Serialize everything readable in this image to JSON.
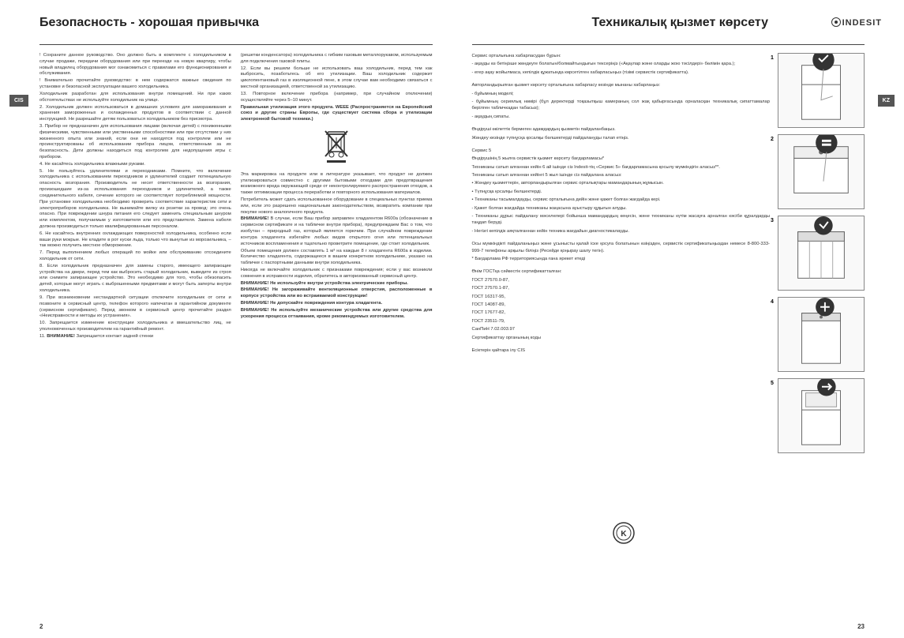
{
  "left": {
    "heading": "Безопасность - хорошая привычка",
    "tab": "CIS",
    "pageNum": "2",
    "col1": [
      {
        "t": "! Сохраните данное руководство. Оно должно быть в комплекте с холодильником в случае продажи, передачи оборудования или при переезде на новую квартиру, чтобы новый владелец оборудования мог ознакомиться с правилами его функционирования и обслуживания."
      },
      {
        "t": "! Внимательно прочитайте руководство: в нем содержатся важные сведения по установке и безопасной эксплуатации вашего холодильника."
      },
      {
        "t": "Холодильник разработан для использования внутри помещений. Ни при каких обстоятельствах не используйте холодильник на улице."
      },
      {
        "t": "2. Холодильник должен использоваться в домашних условиях для замораживания и хранения замороженных и охлажденных продуктов в соответствии с данной инструкцией. Не разрешайте детям пользоваться холодильником без присмотра."
      },
      {
        "t": "3. Прибор не предназначен для использования лицами (включая детей) с пониженными физическими, чувственными или умственными способностями или при отсутствии у них жизненного опыта или знаний, если они не находятся под контролем или не проинструктированы об использовании прибора лицом, ответственным за их безопасность. Дети должны находиться под контролем для недопущения игры с прибором."
      },
      {
        "t": "4. Не касайтесь холодильника влажными руками."
      },
      {
        "t": "5. Не пользуйтесь удлинителями и переходниками. Помните, что включение холодильника с использованием переходников и удлинителей создает потенциальную опасность возгорания. Производитель не несет ответственности за возгорания, произошедшие из-за использования переходников и удлинителей, а также соединительного кабеля, сечение которого не соответствует потребляемой мощности. При установке холодильника необходимо проверить соответствие характеристик сети и электроприборов холодильника. Не вынимайте вилку из розетки за провод: это очень опасно. При повреждении шнура питания его следует заменить специальным шнуром или комплектом, получаемым у изготовителя или его представителя. Замена кабеля должна производиться только квалифицированным персоналом."
      },
      {
        "t": "6. Не касайтесь внутренних охлаждающих поверхностей холодильника, особенно если ваши руки мокрые. Не кладите в рот куски льда, только что вынутые из морозильника, – так можно получить местное обморожение."
      },
      {
        "t": "7. Перед выполнением любых операций по мойке или обслуживанию отсоедините холодильник от сети."
      },
      {
        "t": "8. Если холодильник предназначен для замены старого, имеющего запирающие устройства на двери, перед тем как выбросить старый холодильник, выведите из строя или снимите запирающее устройство. Это необходимо для того, чтобы обезопасить детей, которые могут играть с выброшенными предметами и могут быть заперты внутри холодильника."
      },
      {
        "t": "9. При возникновении нестандартной ситуации отключите холодильник от сети и позвоните в сервисный центр, телефон которого напечатан в гарантийном документе (сервисном сертификате). Перед звонком в сервисный центр прочитайте раздел «Неисправности и методы их устранения»."
      },
      {
        "t": "10. Запрещается изменение конструкции холодильника и вмешательство лиц, не уполномоченных производителем на гарантийный ремонт."
      },
      {
        "t": "11. ",
        "b": "ВНИМАНИЕ!",
        "a": " Запрещается контакт задней стенки"
      }
    ],
    "col2": [
      {
        "t": "(решетки конденсатора) холодильника с гибким газовым металлорукавом, используемым для подключения газовой плиты."
      },
      {
        "t": "12. Если вы решили больше не использовать ваш холодильник, перед тем как выбросить, позаботьтесь об его утилизации. Ваш холодильник содержит циклопентановый газ в изоляционной пене, в этом случае вам необходимо связаться с местной организацией, ответственной за утилизацию."
      },
      {
        "t": "13. Повторное включение прибора (например, при случайном отключении) осуществляйте через 5–10 минут."
      },
      {
        "b": "Правильная утилизация этого продукта. WEEE (Распространяется на Европейский союз и другие страны Европы, где существует система сбора и утилизации электронной бытовой техники.)"
      },
      {
        "icon": "weee"
      },
      {
        "t": "Эта маркировка на продукте или в литературе указывает, что продукт не должен утилизироваться совместно с другими бытовыми отходами для предотвращения возможного вреда окружающей среде от неконтролируемого распространения отходов, а также оптимизации процесса переработки и повторного использования материалов."
      },
      {
        "t": "Потребитель может сдать использованное оборудование в специальных пунктах приема или, если это разрешено национальным законодательством, возвратить компании при покупке нового аналогичного продукта."
      },
      {
        "b": "ВНИМАНИЕ!",
        "a": " В случае, если Ваш прибор заправлен хладагентом R600a (обозначение в сервисном сертификате и на табличке внутри прибора), предупреждаем Вас о том, что изобутан – природный газ, который является горючим. При случайном повреждении контура хладагента избегайте любых видов открытого огня или потенциальных источников воспламенения и тщательно проветрите помещение, где стоит холодильник."
      },
      {
        "t": "Объем помещения должен составлять 1 м³ на каждые 8 г хладагента R600a в изделии. Количество хладагента, содержащееся в вашем конкретном холодильнике, указано на табличке с паспортными данными внутри холодильника."
      },
      {
        "t": "Никогда не включайте холодильник с признаками повреждения; если у вас возникли сомнения в исправности изделия, обратитесь в авторизованный сервисный центр."
      },
      {
        "b": "ВНИМАНИЕ! Не используйте внутри устройства электрические приборы."
      },
      {
        "b": "ВНИМАНИЕ! Не загораживайте вентиляционные отверстия, расположенные в корпусе устройства или во встраиваемой конструкции!"
      },
      {
        "b": "ВНИМАНИЕ! Не допускайте повреждения контура хладагента."
      },
      {
        "b": "ВНИМАНИЕ! Не используйте механические устройства или другие средства для ускорения процесса оттаивания, кроме рекомендуемых изготовителем."
      }
    ]
  },
  "right": {
    "heading": "Техникалық қызмет көрсету",
    "tab": "KZ",
    "pageNum": "23",
    "logo": "INDESIT",
    "text": [
      {
        "b": "Сервис",
        "a": " орталығына хабарласудан бұрын:"
      },
      {
        "t": "- ақауды өз бетіңізше жөндеуге болатын/болмайтындығын тексеріңіз («Ақаулар және оларды жою тәсілдері» бөлімін қара.);"
      },
      {
        "t": "- егер ақау жойылмаса, кепілдік құжатында көрсетілген хабарласыңыз (тізімі сервистік сертификатта)."
      },
      {
        "br": true
      },
      {
        "t": "Авторландырылған қызмет көрсету орталығына хабарласу кезінде мынаны хабарлаңыз:"
      },
      {
        "t": "- бұйымның моделі;"
      },
      {
        "t": "- бұйымның сериялық нөмірі (бұл деректерді тоқазытқыш камераның сол жақ қабырғасында орналасқан техникалық сипаттамалар берілген табличкадан табасыз);"
      },
      {
        "t": "- ақаудың сипаты."
      },
      {
        "br": true
      },
      {
        "b": "Өндіруші өкілеттік бермеген адамдардың қызметін пайдаланбаңыз."
      },
      {
        "t": "Жөндеу кезінде түпнұсқа қосалқы бөлшектерді пайдалануды талап етіңіз."
      },
      {
        "br": true
      },
      {
        "b": "Сервис 5"
      },
      {
        "b": "Өндірушінің 5 жылға сервистік қызмет көрсету бағдарламасы*"
      },
      {
        "t": "Техниканы сатып алғаннан кейін 6 ай ішінде сіз Indesit-тің «Сервис 5» бағдарламасына қосылу мүмкіндігін аласыз**."
      },
      {
        "t": "Техниканы сатып алғаннан кейінгі 5 жыл ішінде сіз пайдалана аласыз:"
      },
      {
        "t": "• ",
        "b": "Жөндеу қызметтерін,",
        "a": " авторландырылған сервис орталықтары мамандарының жұмысын."
      },
      {
        "t": "• ",
        "b": "Түпнұсқа қосалқы бөлшектерді."
      },
      {
        "t": "• ",
        "b": "Техниканы тасымалдауды,",
        "a": " сервис орталығына дейін және қажет болған жағдайда кері."
      },
      {
        "t": "- Қажет болған жағдайда техниканы жаңасына ",
        "b": "ауыстыру",
        "a": " құқығын алуды."
      },
      {
        "t": "- Техниканы дұрыс пайдалану мәселелері бойынша мамандардың кеңесін, және техниканы күтім жасауға арналған кәсіби құралдарды таңдап беруді."
      },
      {
        "t": "- Негізгі кепілдік аяқталғаннан кейін техника жағдайын ",
        "b": "диагностикалауды."
      },
      {
        "br": true
      },
      {
        "b": "Осы мүмкіндікті пайдаланыңыз және ұсынысты қалай іске қосуға болатынын өзіңізден, сервистік сертификатыңыздан немесе 8-800-333-999-7 телефоны арқылы біліңіз (Ресейде қоңырау шалу тегін)."
      },
      {
        "t": "* Бағдарлама РФ территориясында ғана әрекет етеді"
      },
      {
        "br": true
      },
      {
        "t": "Өнім ГОСТқа сәйкестік сертификатталған:"
      },
      {
        "t": "ГОСТ 27570.0-87,"
      },
      {
        "t": "ГОСТ 27570.1-87,"
      },
      {
        "t": "ГОСТ 16317-95,"
      },
      {
        "t": "ГОСТ 14087-89,"
      },
      {
        "t": "ГОСТ 17677-82,"
      },
      {
        "t": "ГОСТ 23511-79,"
      },
      {
        "t": "СанПиН 7.02.003.97"
      },
      {
        "t": "Сертификаттау органының коды"
      },
      {
        "br": true
      },
      {
        "t": "Есіктерін қайтара ілу ",
        "b": "CIS"
      }
    ],
    "diagrams": [
      "1",
      "2",
      "3",
      "4",
      "5"
    ]
  }
}
